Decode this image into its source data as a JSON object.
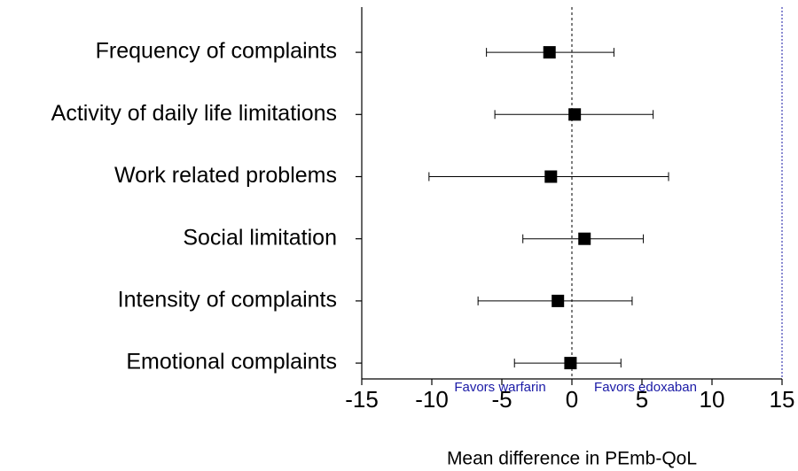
{
  "chart_data": {
    "type": "forest",
    "categories": [
      "Frequency of complaints",
      "Activity of daily life limitations",
      "Work related problems",
      "Social limitation",
      "Intensity of complaints",
      "Emotional complaints"
    ],
    "values": [
      -1.6,
      0.2,
      -1.5,
      0.9,
      -1.0,
      -0.1
    ],
    "ci_low": [
      -6.1,
      -5.5,
      -10.2,
      -3.5,
      -6.7,
      -4.1
    ],
    "ci_high": [
      3.0,
      5.8,
      6.9,
      5.1,
      4.3,
      3.5
    ],
    "color": "#000000",
    "xlim": [
      -15,
      15
    ],
    "xticks": [
      -15,
      -10,
      -5,
      0,
      5,
      10,
      15
    ],
    "xlabel": "Mean difference in PEmb-QoL",
    "annotations": [
      "Favors warfarin",
      "Favors edoxaban"
    ],
    "reference_line": 0
  }
}
